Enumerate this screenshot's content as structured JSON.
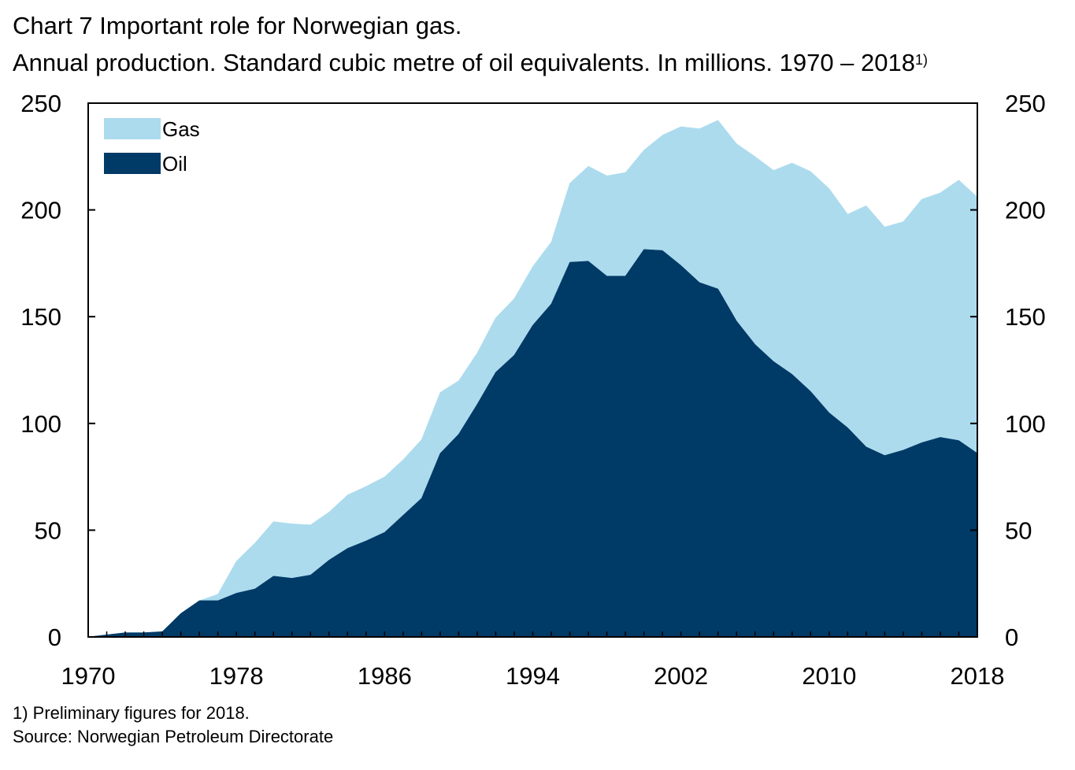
{
  "chart_data": {
    "type": "area",
    "title": "Chart 7 Important role for Norwegian gas.",
    "subtitle": "Annual production. Standard cubic metre of oil equivalents. In millions. 1970 – 2018",
    "subtitle_superscript": "1)",
    "stacked": true,
    "x": [
      1970,
      1971,
      1972,
      1973,
      1974,
      1975,
      1976,
      1977,
      1978,
      1979,
      1980,
      1981,
      1982,
      1983,
      1984,
      1985,
      1986,
      1987,
      1988,
      1989,
      1990,
      1991,
      1992,
      1993,
      1994,
      1995,
      1996,
      1997,
      1998,
      1999,
      2000,
      2001,
      2002,
      2003,
      2004,
      2005,
      2006,
      2007,
      2008,
      2009,
      2010,
      2011,
      2012,
      2013,
      2014,
      2015,
      2016,
      2017,
      2018
    ],
    "series": [
      {
        "name": "Oil",
        "color": "#003a66",
        "values": [
          0,
          1,
          2,
          2,
          2.5,
          11,
          17,
          17,
          20.5,
          22.5,
          28.5,
          27.5,
          29,
          36,
          41.5,
          45,
          49,
          57,
          65,
          86,
          95,
          109,
          124,
          132,
          146,
          156,
          175.5,
          176,
          169,
          169,
          181.5,
          181,
          174,
          166,
          163,
          148,
          137,
          129,
          123,
          115,
          105,
          98,
          89,
          85,
          87.5,
          91,
          93.5,
          92,
          86
        ]
      },
      {
        "name": "Gas",
        "color": "#acdbee",
        "values": [
          0,
          0,
          0,
          0,
          0,
          0,
          0,
          3,
          15,
          21.5,
          25.5,
          25.5,
          23.5,
          22.5,
          25,
          25.5,
          26,
          26,
          27.5,
          28.5,
          25,
          24,
          25.5,
          26.5,
          27.5,
          29,
          37,
          44.5,
          47,
          48.5,
          46.5,
          54,
          65,
          72,
          79,
          83,
          88,
          89.5,
          99,
          103,
          105,
          100,
          113,
          107,
          107,
          114,
          114.5,
          122,
          120
        ]
      }
    ],
    "totals": [
      0,
      1,
      2,
      2,
      2.5,
      11,
      17,
      20,
      35.5,
      44,
      54,
      53,
      52.5,
      58.5,
      66.5,
      70.5,
      75,
      83,
      92.5,
      114.5,
      120,
      133,
      149.5,
      158.5,
      173.5,
      185,
      212.5,
      220.5,
      216,
      217.5,
      228,
      235,
      239,
      238,
      242,
      231,
      225,
      218.5,
      222,
      218,
      210,
      198,
      202,
      192,
      194.5,
      205,
      208,
      214,
      206
    ],
    "ylim": [
      0,
      250
    ],
    "yticks": [
      "0",
      "50",
      "100",
      "150",
      "200",
      "250"
    ],
    "xticks": [
      "1970",
      "1978",
      "1986",
      "1994",
      "2002",
      "2010",
      "2018"
    ],
    "legend": [
      "Gas",
      "Oil"
    ],
    "legend_position": "top-left",
    "grid": false,
    "footnote": "1) Preliminary figures for 2018.",
    "source": "Source: Norwegian Petroleum Directorate"
  }
}
